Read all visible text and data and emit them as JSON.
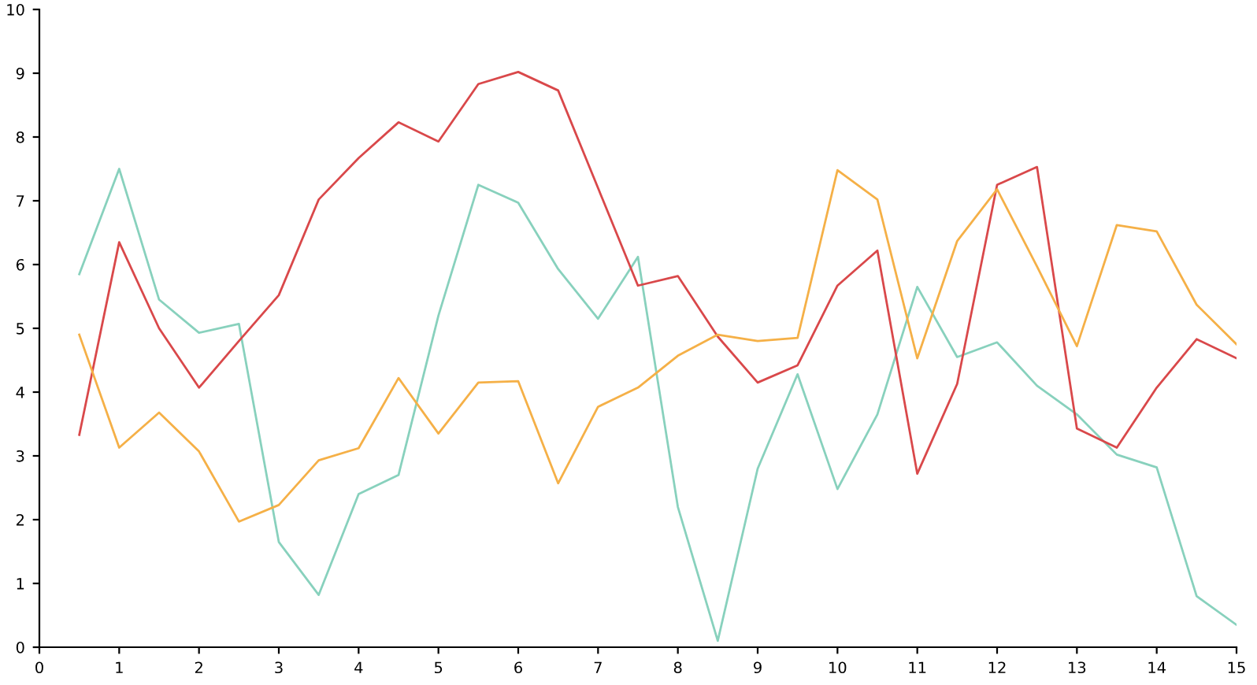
{
  "chart_data": {
    "type": "line",
    "x": [
      0.5,
      1,
      1.5,
      2,
      2.5,
      3,
      3.5,
      4,
      4.5,
      5,
      5.5,
      6,
      6.5,
      7,
      7.5,
      8,
      8.5,
      9,
      9.5,
      10,
      10.5,
      11,
      11.5,
      12,
      12.5,
      13,
      13.5,
      14,
      14.5,
      15
    ],
    "series": [
      {
        "color": "#88d1bd",
        "values": [
          5.85,
          7.5,
          5.45,
          4.93,
          5.07,
          1.65,
          0.82,
          2.4,
          2.7,
          5.2,
          7.25,
          6.97,
          5.93,
          5.15,
          6.12,
          2.2,
          0.1,
          2.8,
          4.28,
          2.48,
          3.65,
          5.65,
          4.55,
          4.78,
          4.1,
          3.65,
          3.02,
          2.82,
          0.8,
          0.35
        ]
      },
      {
        "color": "#d9484a",
        "values": [
          3.33,
          6.35,
          5.0,
          4.07,
          4.8,
          5.52,
          7.02,
          7.67,
          8.23,
          7.93,
          8.83,
          9.02,
          8.73,
          7.2,
          5.67,
          5.82,
          4.87,
          4.15,
          4.42,
          5.67,
          6.22,
          2.72,
          4.13,
          7.25,
          7.53,
          3.43,
          3.13,
          4.07,
          4.83,
          4.53
        ]
      },
      {
        "color": "#f5b047",
        "values": [
          4.9,
          3.13,
          3.68,
          3.07,
          1.97,
          2.23,
          2.93,
          3.12,
          4.22,
          3.35,
          4.15,
          4.17,
          2.57,
          3.77,
          4.07,
          4.57,
          4.9,
          4.8,
          4.85,
          7.48,
          7.02,
          4.53,
          6.37,
          7.18,
          5.97,
          4.72,
          6.62,
          6.52,
          5.37,
          4.75
        ]
      }
    ],
    "xlim": [
      0,
      15
    ],
    "xticks": [
      0,
      1,
      2,
      3,
      4,
      5,
      6,
      7,
      8,
      9,
      10,
      11,
      12,
      13,
      14,
      15
    ],
    "ylim": [
      0,
      10
    ],
    "yticks": [
      0,
      1,
      2,
      3,
      4,
      5,
      6,
      7,
      8,
      9,
      10
    ],
    "grid": false,
    "legend": false,
    "marker": "none",
    "line_style": "solid"
  }
}
